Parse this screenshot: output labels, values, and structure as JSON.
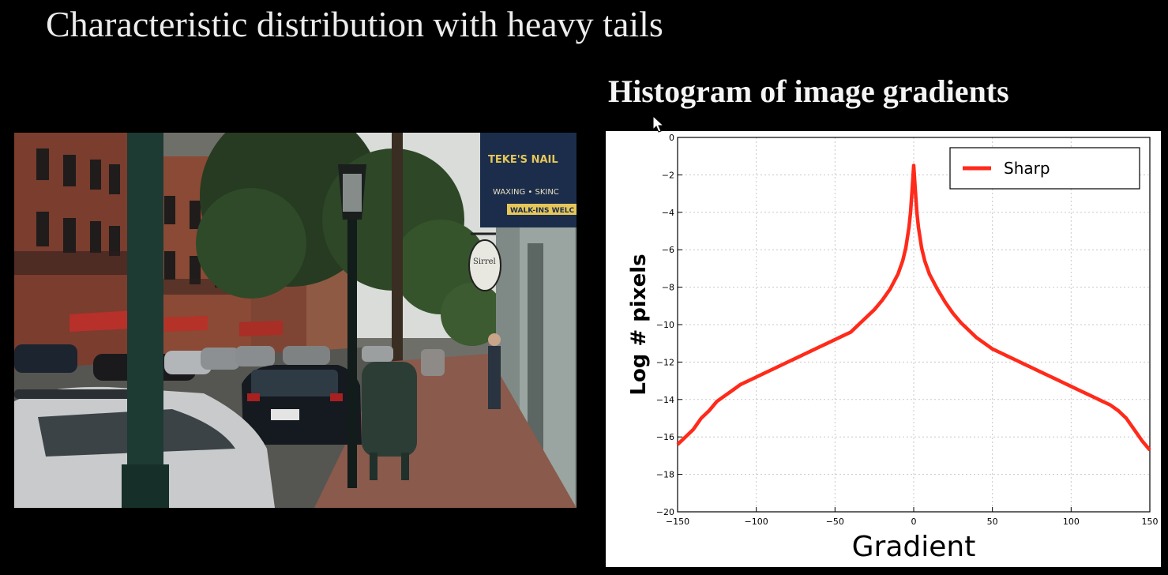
{
  "slide": {
    "title": "Characteristic distribution with heavy tails"
  },
  "photo": {
    "sign_text": "TEKE'S NAIL",
    "sign_line2": "WAXING • SKINC",
    "sign_line3": "WALK-INS WELC",
    "hanging_sign": "Sirrel"
  },
  "chart_data": {
    "type": "line",
    "title": "Histogram of image gradients",
    "xlabel": "Gradient",
    "ylabel": "Log # pixels",
    "xlim": [
      -150,
      150
    ],
    "ylim": [
      -20,
      0
    ],
    "xticks": [
      -150,
      -100,
      -50,
      0,
      50,
      100,
      150
    ],
    "yticks": [
      0,
      -2,
      -4,
      -6,
      -8,
      -10,
      -12,
      -14,
      -16,
      -18,
      -20
    ],
    "grid": true,
    "legend_position": "top-right",
    "series": [
      {
        "name": "Sharp",
        "color": "#ff2a1a",
        "points": [
          [
            -150,
            -16.4
          ],
          [
            -145,
            -16.0
          ],
          [
            -140,
            -15.6
          ],
          [
            -135,
            -15.0
          ],
          [
            -130,
            -14.6
          ],
          [
            -125,
            -14.1
          ],
          [
            -120,
            -13.8
          ],
          [
            -115,
            -13.5
          ],
          [
            -110,
            -13.2
          ],
          [
            -105,
            -13.0
          ],
          [
            -100,
            -12.8
          ],
          [
            -95,
            -12.6
          ],
          [
            -90,
            -12.4
          ],
          [
            -85,
            -12.2
          ],
          [
            -80,
            -12.0
          ],
          [
            -75,
            -11.8
          ],
          [
            -70,
            -11.6
          ],
          [
            -65,
            -11.4
          ],
          [
            -60,
            -11.2
          ],
          [
            -55,
            -11.0
          ],
          [
            -50,
            -10.8
          ],
          [
            -45,
            -10.6
          ],
          [
            -40,
            -10.4
          ],
          [
            -35,
            -10.0
          ],
          [
            -30,
            -9.6
          ],
          [
            -25,
            -9.2
          ],
          [
            -20,
            -8.7
          ],
          [
            -15,
            -8.1
          ],
          [
            -10,
            -7.3
          ],
          [
            -7,
            -6.6
          ],
          [
            -5,
            -5.9
          ],
          [
            -3,
            -4.8
          ],
          [
            -2,
            -4.0
          ],
          [
            -1,
            -2.8
          ],
          [
            0,
            -1.5
          ],
          [
            1,
            -2.8
          ],
          [
            2,
            -4.0
          ],
          [
            3,
            -4.8
          ],
          [
            5,
            -5.9
          ],
          [
            7,
            -6.6
          ],
          [
            10,
            -7.3
          ],
          [
            15,
            -8.1
          ],
          [
            20,
            -8.8
          ],
          [
            25,
            -9.4
          ],
          [
            30,
            -9.9
          ],
          [
            35,
            -10.3
          ],
          [
            40,
            -10.7
          ],
          [
            45,
            -11.0
          ],
          [
            50,
            -11.3
          ],
          [
            55,
            -11.5
          ],
          [
            60,
            -11.7
          ],
          [
            65,
            -11.9
          ],
          [
            70,
            -12.1
          ],
          [
            75,
            -12.3
          ],
          [
            80,
            -12.5
          ],
          [
            85,
            -12.7
          ],
          [
            90,
            -12.9
          ],
          [
            95,
            -13.1
          ],
          [
            100,
            -13.3
          ],
          [
            105,
            -13.5
          ],
          [
            110,
            -13.7
          ],
          [
            115,
            -13.9
          ],
          [
            120,
            -14.1
          ],
          [
            125,
            -14.3
          ],
          [
            130,
            -14.6
          ],
          [
            135,
            -15.0
          ],
          [
            140,
            -15.6
          ],
          [
            145,
            -16.2
          ],
          [
            150,
            -16.7
          ]
        ]
      }
    ]
  }
}
